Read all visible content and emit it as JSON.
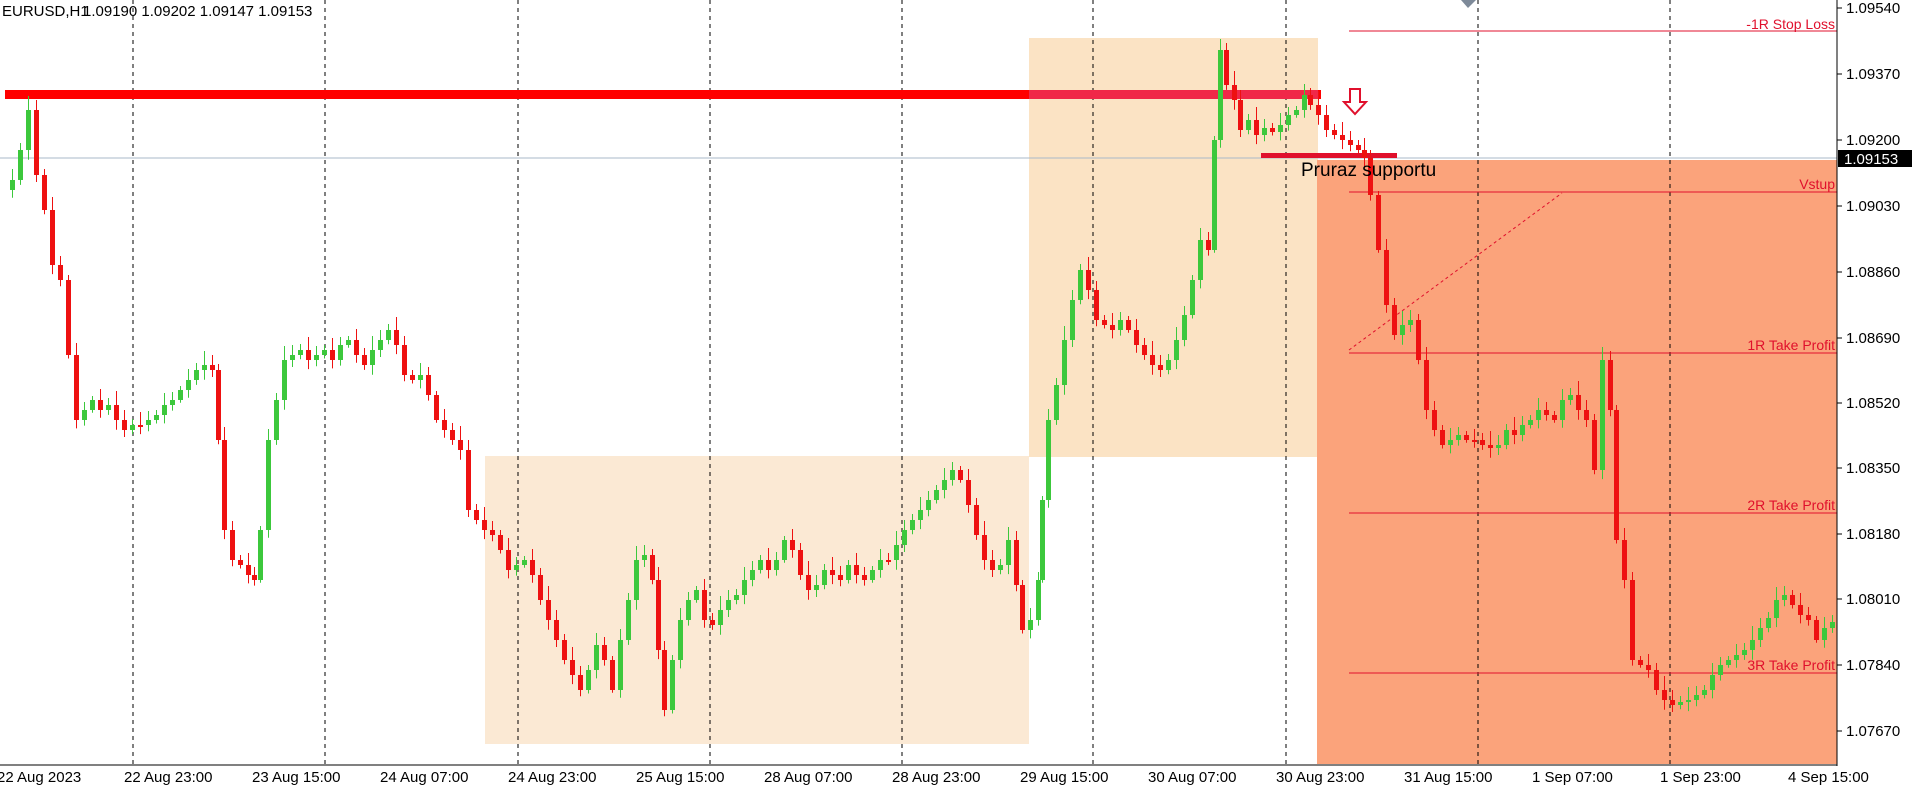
{
  "header": {
    "symbol": "EURUSD,H1",
    "ohlc": "1.09190 1.09202 1.09147 1.09153"
  },
  "price_axis": {
    "labels": [
      "1.09540",
      "1.09370",
      "1.09200",
      "1.09030",
      "1.08860",
      "1.08690",
      "1.08520",
      "1.08350",
      "1.08180",
      "1.08010",
      "1.07840",
      "1.07670"
    ],
    "current_price": "1.09153"
  },
  "time_axis": {
    "labels": [
      "22 Aug 2023",
      "22 Aug 23:00",
      "23 Aug 15:00",
      "24 Aug 07:00",
      "24 Aug 23:00",
      "25 Aug 15:00",
      "28 Aug 07:00",
      "28 Aug 23:00",
      "29 Aug 15:00",
      "30 Aug 07:00",
      "30 Aug 23:00",
      "31 Aug 15:00",
      "1 Sep 07:00",
      "1 Sep 23:00",
      "4 Sep 15:00"
    ]
  },
  "levels": {
    "stop_loss": "-1R Stop Loss",
    "entry": "Vstup",
    "tp1": "1R Take Profit",
    "tp2": "2R Take Profit",
    "tp3": "3R Take Profit"
  },
  "annotation": {
    "breakout": "Pruraz supportu"
  },
  "colors": {
    "bull": "#3cc83c",
    "bear": "#ee1111",
    "zone": "#fbe9d4",
    "trade_zone": "#fba37b",
    "resistance": "#ff0000",
    "level_line": "#e0102c"
  }
}
